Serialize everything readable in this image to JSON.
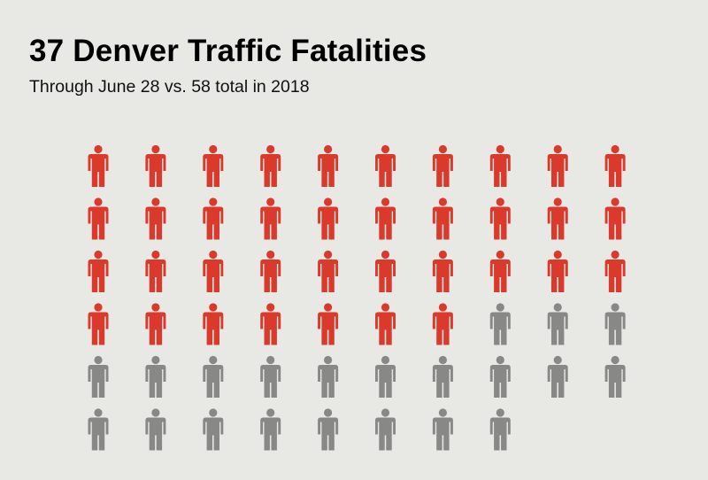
{
  "chart_data": {
    "type": "pictogram",
    "title": "37 Denver Traffic Fatalities",
    "subtitle": "Through June 28 vs. 58 total in 2018",
    "icon": "person-icon",
    "per_row": 10,
    "series": [
      {
        "value": 37,
        "color": "#d93a2b"
      },
      {
        "value": 21,
        "color": "#888886"
      }
    ],
    "total": 58
  }
}
